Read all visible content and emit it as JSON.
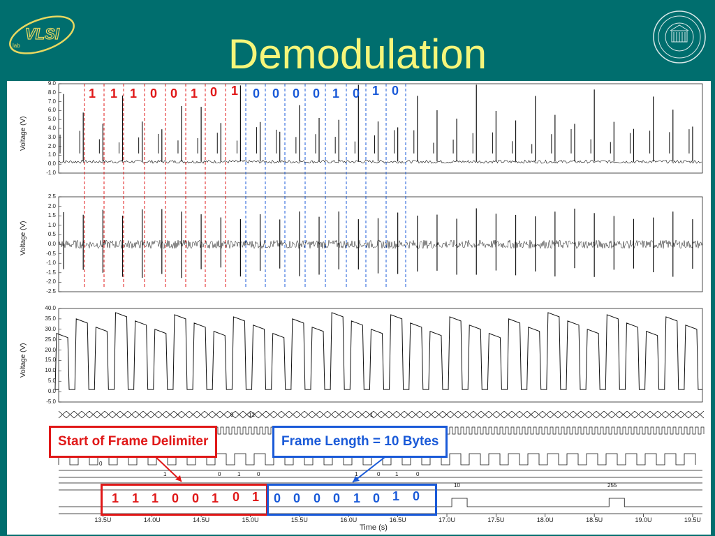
{
  "header": {
    "title": "Demodulation",
    "logo_left_text": "VLSI",
    "logo_left_sub": "lab",
    "logo_right": "university-seal"
  },
  "colors": {
    "background": "#006e6e",
    "title": "#f6f67a",
    "red": "#e01818",
    "blue": "#1a5ad8"
  },
  "top_bits": {
    "red": [
      "1",
      "1",
      "1",
      "0",
      "0",
      "1",
      "0",
      "1"
    ],
    "blue": [
      "0",
      "0",
      "0",
      "0",
      "1",
      "0",
      "1",
      "0"
    ]
  },
  "bottom_bits": {
    "red": [
      "1",
      "1",
      "1",
      "0",
      "0",
      "1",
      "0",
      "1"
    ],
    "blue": [
      "0",
      "0",
      "0",
      "0",
      "1",
      "0",
      "1",
      "0"
    ]
  },
  "callouts": {
    "start_frame": "Start of Frame Delimiter",
    "frame_length": "Frame Length = 10 Bytes"
  },
  "chart_data": [
    {
      "type": "line",
      "ylabel": "Voltage (V)",
      "yticks": [
        "9.0",
        "8.0",
        "7.0",
        "6.0",
        "5.0",
        "4.0",
        "3.0",
        "2.0",
        "1.0",
        "0.0",
        "-1.0"
      ],
      "ylim": [
        -1.0,
        9.0
      ]
    },
    {
      "type": "line",
      "ylabel": "Voltage (V)",
      "yticks": [
        "2.5",
        "2.0",
        "1.5",
        "1.0",
        "0.5",
        "0.0",
        "-0.5",
        "-1.0",
        "-1.5",
        "-2.0",
        "-2.5"
      ],
      "ylim": [
        -2.5,
        2.5
      ]
    },
    {
      "type": "line",
      "ylabel": "Voltage (V)",
      "yticks": [
        "40.0",
        "35.0",
        "30.0",
        "25.0",
        "20.0",
        "15.0",
        "10.0",
        "5.0",
        "0.0",
        "-5.0"
      ],
      "ylim": [
        -5.0,
        40.0
      ]
    },
    {
      "type": "line",
      "digital_labels": [
        "0",
        "12",
        "1",
        "0",
        "1",
        "0",
        "1",
        "0",
        "1",
        "0",
        "1",
        "0",
        "10",
        "255"
      ],
      "xlabel": "Time (s)",
      "xticks": [
        "13.5U",
        "14.0U",
        "14.5U",
        "15.0U",
        "15.5U",
        "16.0U",
        "16.5U",
        "17.0U",
        "17.5U",
        "18.0U",
        "18.5U",
        "19.0U",
        "19.5U"
      ],
      "xlim": [
        13.05,
        19.6
      ]
    }
  ]
}
